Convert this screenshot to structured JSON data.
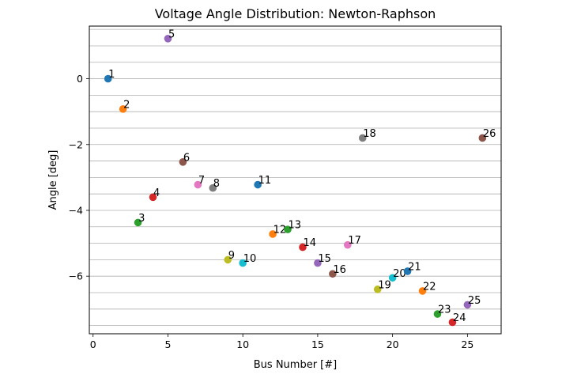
{
  "chart_data": {
    "type": "scatter",
    "title": "Voltage Angle Distribution: Newton-Raphson",
    "xlabel": "Bus Number [#]",
    "ylabel": "Angle [deg]",
    "xlim": [
      -0.25,
      27.25
    ],
    "ylim": [
      -7.75,
      1.6
    ],
    "xticks": [
      0,
      5,
      10,
      15,
      20,
      25
    ],
    "yticks": [
      0,
      -2,
      -4,
      -6
    ],
    "grid": "horizontal",
    "ygrid": [
      1.5,
      1.0,
      0.5,
      0,
      -0.5,
      -1.0,
      -1.5,
      -2.0,
      -2.5,
      -3.0,
      -3.5,
      -4.0,
      -4.5,
      -5.0,
      -5.5,
      -6.0,
      -6.5,
      -7.0,
      -7.5
    ],
    "points": [
      {
        "x": 1,
        "y": 0.0,
        "label": "1"
      },
      {
        "x": 2,
        "y": -0.92,
        "label": "2"
      },
      {
        "x": 3,
        "y": -4.37,
        "label": "3"
      },
      {
        "x": 4,
        "y": -3.6,
        "label": "4"
      },
      {
        "x": 5,
        "y": 1.22,
        "label": "5"
      },
      {
        "x": 6,
        "y": -2.53,
        "label": "6"
      },
      {
        "x": 7,
        "y": -3.22,
        "label": "7"
      },
      {
        "x": 8,
        "y": -3.32,
        "label": "8"
      },
      {
        "x": 9,
        "y": -5.5,
        "label": "9"
      },
      {
        "x": 10,
        "y": -5.6,
        "label": "10"
      },
      {
        "x": 11,
        "y": -3.22,
        "label": "11"
      },
      {
        "x": 12,
        "y": -4.72,
        "label": "12"
      },
      {
        "x": 13,
        "y": -4.58,
        "label": "13"
      },
      {
        "x": 14,
        "y": -5.12,
        "label": "14"
      },
      {
        "x": 15,
        "y": -5.6,
        "label": "15"
      },
      {
        "x": 16,
        "y": -5.93,
        "label": "16"
      },
      {
        "x": 17,
        "y": -5.05,
        "label": "17"
      },
      {
        "x": 18,
        "y": -1.8,
        "label": "18"
      },
      {
        "x": 19,
        "y": -6.4,
        "label": "19"
      },
      {
        "x": 20,
        "y": -6.05,
        "label": "20"
      },
      {
        "x": 21,
        "y": -5.85,
        "label": "21"
      },
      {
        "x": 22,
        "y": -6.45,
        "label": "22"
      },
      {
        "x": 23,
        "y": -7.15,
        "label": "23"
      },
      {
        "x": 24,
        "y": -7.4,
        "label": "24"
      },
      {
        "x": 25,
        "y": -6.87,
        "label": "25"
      },
      {
        "x": 26,
        "y": -1.8,
        "label": "26"
      }
    ],
    "colors": [
      "#1f77b4",
      "#ff7f0e",
      "#2ca02c",
      "#d62728",
      "#9467bd",
      "#8c564b",
      "#e377c2",
      "#7f7f7f",
      "#bcbd22",
      "#17becf"
    ]
  }
}
